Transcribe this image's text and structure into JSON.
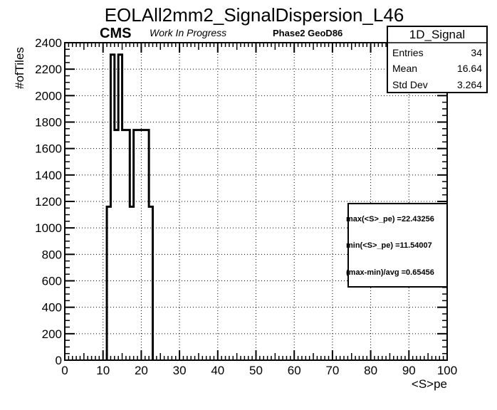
{
  "title": "EOLAll2mm2_SignalDispersion_L46",
  "labels": {
    "cms": "CMS",
    "work_in_progress": "Work In Progress",
    "geometry": "Phase2 GeoD86"
  },
  "stats_box": {
    "name": "1D_Signal",
    "rows": [
      {
        "label": "Entries",
        "value": "34"
      },
      {
        "label": "Mean",
        "value": "16.64"
      },
      {
        "label": "Std Dev",
        "value": "3.264"
      }
    ]
  },
  "info_box": {
    "lines": [
      "max(<S>_pe) =22.43256",
      "min(<S>_pe) =11.54007",
      "(max-min)/avg =0.65456"
    ]
  },
  "chart_data": {
    "type": "bar",
    "title": "EOLAll2mm2_SignalDispersion_L46",
    "xlabel": "<S>pe",
    "ylabel": "#ofTiles",
    "xlim": [
      0,
      100
    ],
    "ylim": [
      0,
      2400
    ],
    "x_ticks": [
      0,
      10,
      20,
      30,
      40,
      50,
      60,
      70,
      80,
      90,
      100
    ],
    "y_ticks": [
      0,
      200,
      400,
      600,
      800,
      1000,
      1200,
      1400,
      1600,
      1800,
      2000,
      2200,
      2400
    ],
    "grid": true,
    "histogram": {
      "bin_edges": [
        11,
        12,
        13,
        14,
        15,
        17,
        18,
        19,
        22,
        23
      ],
      "values": [
        1160,
        2310,
        1740,
        2310,
        1740,
        1160,
        1740,
        1740,
        1160
      ]
    }
  },
  "colors": {
    "line": "#000000",
    "grid": "#000000",
    "background": "#ffffff"
  }
}
